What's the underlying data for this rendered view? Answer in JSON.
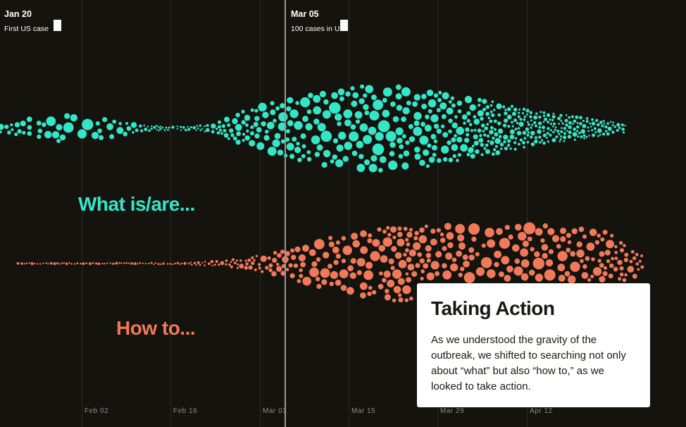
{
  "chart_data": {
    "type": "scatter",
    "subtype": "beeswarm-timeline",
    "x_axis": {
      "ticks": [
        "Feb 02",
        "Feb 16",
        "Mar 01",
        "Mar 15",
        "Mar 29",
        "Apr 12"
      ]
    },
    "markers": [
      {
        "date": "Jan 20",
        "label": "First US case"
      },
      {
        "date": "Mar 05",
        "label": "100 cases in US"
      }
    ],
    "series": [
      {
        "name": "What is/are...",
        "color": "#33e6c7"
      },
      {
        "name": "How to...",
        "color": "#f0795a"
      }
    ]
  },
  "callout": {
    "title": "Taking Action",
    "body": "As we understood the gravity of the outbreak, we shifted to searching not only about “what” but also “how to,” as we looked to take action."
  }
}
